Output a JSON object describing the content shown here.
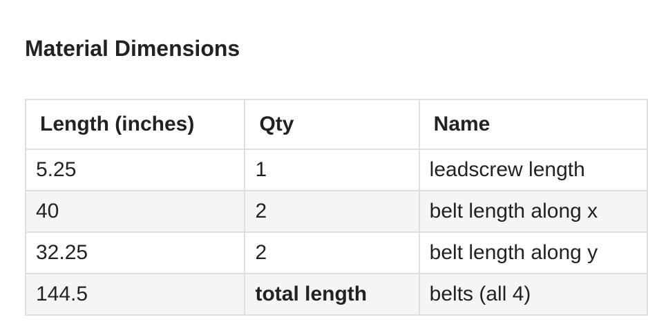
{
  "title": "Material Dimensions",
  "table": {
    "headers": [
      "Length (inches)",
      "Qty",
      "Name"
    ],
    "rows": [
      [
        "5.25",
        "1",
        "leadscrew length"
      ],
      [
        "40",
        "2",
        "belt length along x"
      ],
      [
        "32.25",
        "2",
        "belt length along y"
      ],
      [
        "144.5",
        "total length",
        "belts (all 4)"
      ]
    ]
  }
}
